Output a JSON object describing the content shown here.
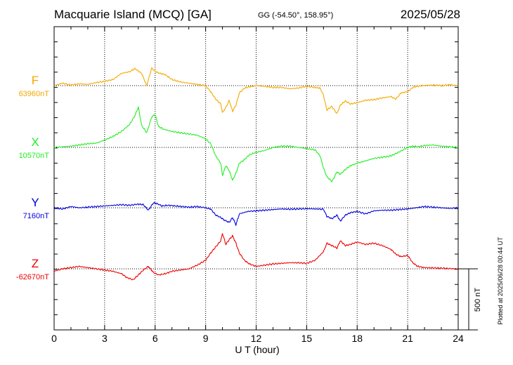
{
  "header": {
    "station": "Macquarie Island (MCQ)  [GA]",
    "coords": "GG (-54.50°, 158.95°)",
    "date": "2025/05/28"
  },
  "footer_note": "Plotted at 2025/06/28 00:44 UT",
  "chart_data": {
    "type": "line",
    "xlabel": "U T (hour)",
    "xlim": [
      0,
      24
    ],
    "x_ticks": [
      0,
      3,
      6,
      9,
      12,
      15,
      18,
      21,
      24
    ],
    "x_tick_labels": [
      "0",
      "3",
      "6",
      "9",
      "12",
      "15",
      "18",
      "21",
      "24"
    ],
    "scale_bar": {
      "value": 500,
      "label": "500 nT"
    },
    "panel_spacing_nT": 500,
    "grid": true,
    "series": [
      {
        "name": "F",
        "baseline_label": "63960nT",
        "baseline": 63960,
        "color": "#f5a800",
        "x": [
          0,
          0.5,
          1,
          1.5,
          2,
          2.5,
          3,
          3.5,
          4,
          4.5,
          4.8,
          5.2,
          5.5,
          5.8,
          6,
          6.3,
          6.6,
          7,
          7.5,
          8,
          8.5,
          9,
          9.3,
          9.6,
          9.9,
          10,
          10.2,
          10.4,
          10.6,
          10.8,
          11,
          11.3,
          11.6,
          12,
          12.5,
          13,
          13.5,
          14,
          14.5,
          15,
          15.5,
          15.8,
          16,
          16.2,
          16.5,
          16.8,
          17,
          17.3,
          17.6,
          18,
          18.5,
          19,
          19.5,
          20,
          20.3,
          20.6,
          21,
          21.3,
          21.6,
          22,
          22.5,
          23,
          23.5,
          24
        ],
        "y": [
          63960,
          63980,
          63965,
          63975,
          63970,
          63985,
          63995,
          64010,
          64060,
          64075,
          64100,
          64060,
          63960,
          64105,
          64075,
          64060,
          64050,
          64010,
          63990,
          63980,
          63970,
          63960,
          63910,
          63850,
          63810,
          63740,
          63780,
          63840,
          63750,
          63800,
          63900,
          63940,
          63950,
          63960,
          63955,
          63945,
          63945,
          63935,
          63940,
          63955,
          63945,
          63940,
          63880,
          63760,
          63790,
          63730,
          63800,
          63835,
          63810,
          63820,
          63840,
          63845,
          63860,
          63870,
          63850,
          63900,
          63910,
          63945,
          63955,
          63962,
          63965,
          63960,
          63968,
          63960
        ]
      },
      {
        "name": "X",
        "baseline_label": "10570nT",
        "baseline": 10570,
        "color": "#22ee22",
        "x": [
          0,
          0.5,
          1,
          1.5,
          2,
          2.5,
          3,
          3.5,
          4,
          4.5,
          4.8,
          5,
          5.2,
          5.5,
          5.8,
          6,
          6.2,
          6.5,
          7,
          7.5,
          8,
          8.5,
          9,
          9.3,
          9.6,
          9.9,
          10,
          10.2,
          10.4,
          10.6,
          10.8,
          11,
          11.3,
          11.6,
          12,
          12.5,
          13,
          13.5,
          14,
          14.5,
          15,
          15.5,
          15.8,
          16,
          16.2,
          16.5,
          16.8,
          17,
          17.3,
          17.6,
          18,
          18.5,
          19,
          19.5,
          20,
          20.3,
          20.6,
          21,
          21.3,
          21.6,
          22,
          22.5,
          23,
          23.5,
          24
        ],
        "y": [
          10570,
          10575,
          10580,
          10590,
          10600,
          10605,
          10630,
          10660,
          10700,
          10760,
          10830,
          10900,
          10750,
          10690,
          10820,
          10840,
          10740,
          10720,
          10700,
          10690,
          10680,
          10670,
          10640,
          10600,
          10500,
          10440,
          10340,
          10420,
          10380,
          10300,
          10360,
          10440,
          10470,
          10510,
          10530,
          10545,
          10570,
          10580,
          10580,
          10570,
          10560,
          10550,
          10500,
          10400,
          10330,
          10290,
          10370,
          10350,
          10390,
          10420,
          10440,
          10460,
          10480,
          10490,
          10500,
          10520,
          10540,
          10570,
          10580,
          10575,
          10585,
          10590,
          10580,
          10575,
          10570
        ]
      },
      {
        "name": "Y",
        "baseline_label": "7160nT",
        "baseline": 7160,
        "color": "#0000dd",
        "x": [
          0,
          0.5,
          1,
          1.5,
          2,
          2.5,
          3,
          3.5,
          4,
          4.5,
          5,
          5.3,
          5.6,
          5.9,
          6.1,
          6.4,
          6.8,
          7.2,
          7.6,
          8,
          8.5,
          9,
          9.3,
          9.6,
          9.9,
          10.1,
          10.4,
          10.6,
          10.8,
          11,
          11.5,
          12,
          12.5,
          13,
          13.5,
          14,
          14.5,
          15,
          15.5,
          16,
          16.2,
          16.5,
          16.8,
          17,
          17.3,
          17.6,
          18,
          18.5,
          19,
          19.5,
          20,
          20.5,
          21,
          21.5,
          22,
          22.5,
          23,
          23.5,
          24
        ],
        "y": [
          7160,
          7150,
          7170,
          7160,
          7165,
          7170,
          7175,
          7180,
          7185,
          7180,
          7190,
          7185,
          7140,
          7200,
          7195,
          7175,
          7180,
          7175,
          7170,
          7165,
          7170,
          7160,
          7150,
          7100,
          7080,
          7060,
          7040,
          7080,
          7020,
          7110,
          7130,
          7135,
          7140,
          7145,
          7150,
          7148,
          7150,
          7152,
          7150,
          7148,
          7090,
          7070,
          7100,
          7050,
          7100,
          7120,
          7130,
          7110,
          7135,
          7140,
          7140,
          7145,
          7150,
          7160,
          7170,
          7165,
          7160,
          7155,
          7160
        ]
      },
      {
        "name": "Z",
        "baseline_label": "-62670nT",
        "baseline": -62670,
        "color": "#ee0000",
        "x": [
          0,
          0.5,
          1,
          1.5,
          2,
          2.5,
          3,
          3.5,
          4,
          4.3,
          4.7,
          5,
          5.3,
          5.6,
          5.9,
          6.2,
          6.6,
          7,
          7.5,
          8,
          8.5,
          9,
          9.3,
          9.6,
          9.9,
          10,
          10.2,
          10.4,
          10.6,
          10.8,
          11,
          11.3,
          11.6,
          12,
          12.5,
          13,
          13.5,
          14,
          14.5,
          15,
          15.5,
          16,
          16.2,
          16.5,
          16.8,
          17,
          17.3,
          17.6,
          18,
          18.5,
          19,
          19.5,
          20,
          20.3,
          20.6,
          21,
          21.3,
          21.6,
          22,
          22.5,
          23,
          23.5,
          24
        ],
        "y": [
          -62690,
          -62670,
          -62660,
          -62650,
          -62660,
          -62670,
          -62680,
          -62690,
          -62710,
          -62740,
          -62760,
          -62720,
          -62680,
          -62650,
          -62700,
          -62720,
          -62710,
          -62690,
          -62680,
          -62670,
          -62640,
          -62600,
          -62540,
          -62490,
          -62440,
          -62380,
          -62470,
          -62430,
          -62400,
          -62460,
          -62540,
          -62600,
          -62630,
          -62650,
          -62640,
          -62630,
          -62625,
          -62620,
          -62620,
          -62625,
          -62600,
          -62530,
          -62460,
          -62480,
          -62500,
          -62440,
          -62480,
          -62470,
          -62450,
          -62470,
          -62460,
          -62480,
          -62510,
          -62550,
          -62570,
          -62560,
          -62620,
          -62650,
          -62660,
          -62662,
          -62665,
          -62668,
          -62670
        ]
      }
    ]
  }
}
